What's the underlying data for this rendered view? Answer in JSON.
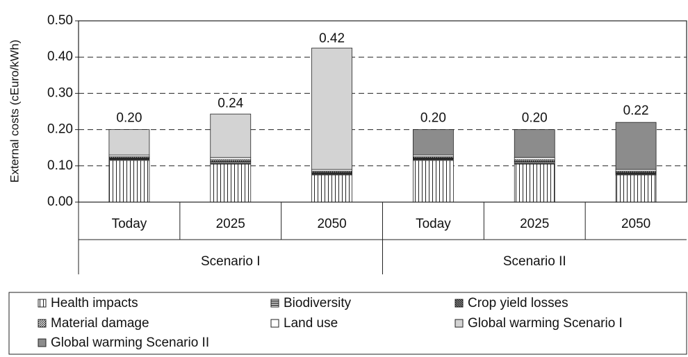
{
  "chart_data": {
    "type": "stacked_bar",
    "y_label": "External costs (cEuro/kWh)",
    "categories": [
      "Today",
      "2025",
      "2050",
      "Today",
      "2025",
      "2050"
    ],
    "groups": [
      "Scenario I",
      "Scenario II"
    ],
    "series": [
      {
        "name": "Health impacts",
        "color": "#ffffff",
        "pattern": "vertical",
        "values": [
          0.115,
          0.105,
          0.075,
          0.115,
          0.105,
          0.075
        ]
      },
      {
        "name": "Biodiversity",
        "color": "#ffffff",
        "pattern": "horizontal",
        "values": [
          0.005,
          0.005,
          0.005,
          0.005,
          0.005,
          0.005
        ]
      },
      {
        "name": "Crop yield losses",
        "color": "#ffffff",
        "pattern": "backslash",
        "values": [
          0.002,
          0.003,
          0.002,
          0.002,
          0.003,
          0.002
        ]
      },
      {
        "name": "Material damage",
        "color": "#ffffff",
        "pattern": "slash",
        "values": [
          0.003,
          0.004,
          0.003,
          0.003,
          0.004,
          0.003
        ]
      },
      {
        "name": "Land use",
        "color": "#ffffff",
        "pattern": "none",
        "values": [
          0.005,
          0.006,
          0.005,
          0.005,
          0.006,
          0.005
        ]
      },
      {
        "name": "Global warming Scenario I",
        "color": "#d3d3d3",
        "pattern": "none",
        "values": [
          0.07,
          0.12,
          0.335,
          null,
          null,
          null
        ]
      },
      {
        "name": "Global warming Scenario II",
        "color": "#8c8c8c",
        "pattern": "none",
        "values": [
          null,
          null,
          null,
          0.07,
          0.077,
          0.13
        ]
      }
    ],
    "totals": [
      0.2,
      0.24,
      0.42,
      0.2,
      0.2,
      0.22
    ],
    "total_labels": [
      "0.20",
      "0.24",
      "0.42",
      "0.20",
      "0.20",
      "0.22"
    ],
    "ylim": [
      0,
      0.5
    ],
    "yticks": [
      {
        "value": 0,
        "label": "0.00"
      },
      {
        "value": 0.1,
        "label": "0.10"
      },
      {
        "value": 0.2,
        "label": "0.20"
      },
      {
        "value": 0.3,
        "label": "0.30"
      },
      {
        "value": 0.4,
        "label": "0.40"
      },
      {
        "value": 0.5,
        "label": "0.50"
      }
    ],
    "grid": true
  }
}
